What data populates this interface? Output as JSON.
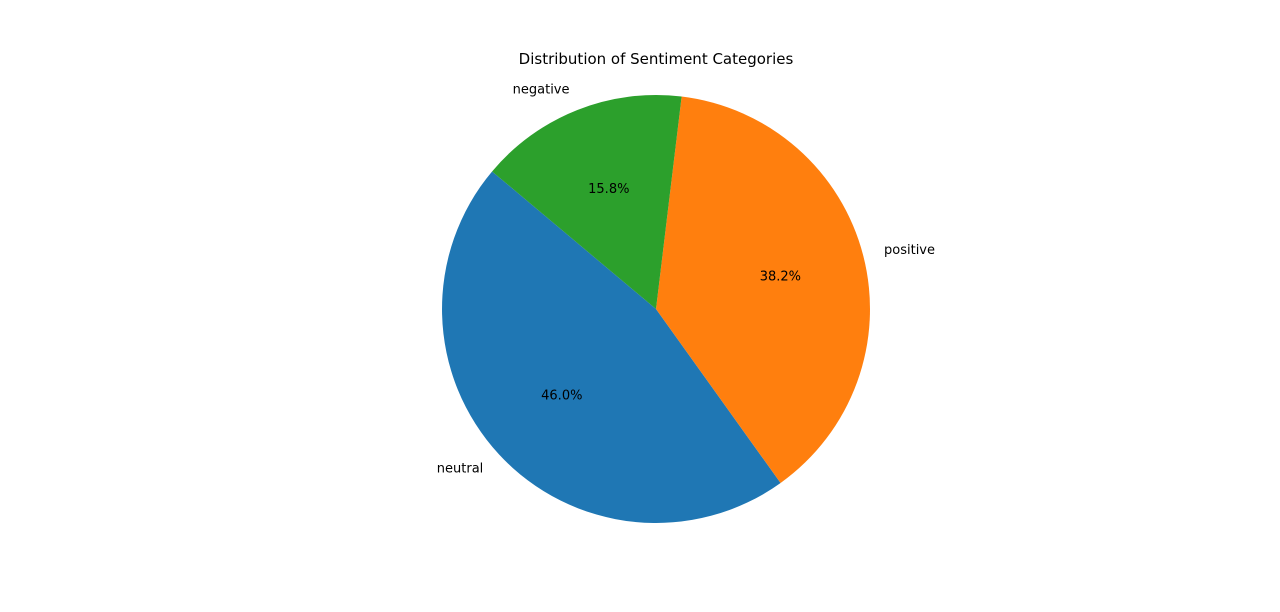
{
  "chart_data": {
    "type": "pie",
    "title": "Distribution of Sentiment Categories",
    "categories": [
      "neutral",
      "positive",
      "negative"
    ],
    "values": [
      46.0,
      38.2,
      15.8
    ],
    "value_labels": [
      "46.0%",
      "38.2%",
      "15.8%"
    ],
    "colors": [
      "#1f77b4",
      "#ff7f0e",
      "#2ca02c"
    ],
    "start_angle_deg": 140,
    "direction": "counterclockwise",
    "legend": "none"
  }
}
